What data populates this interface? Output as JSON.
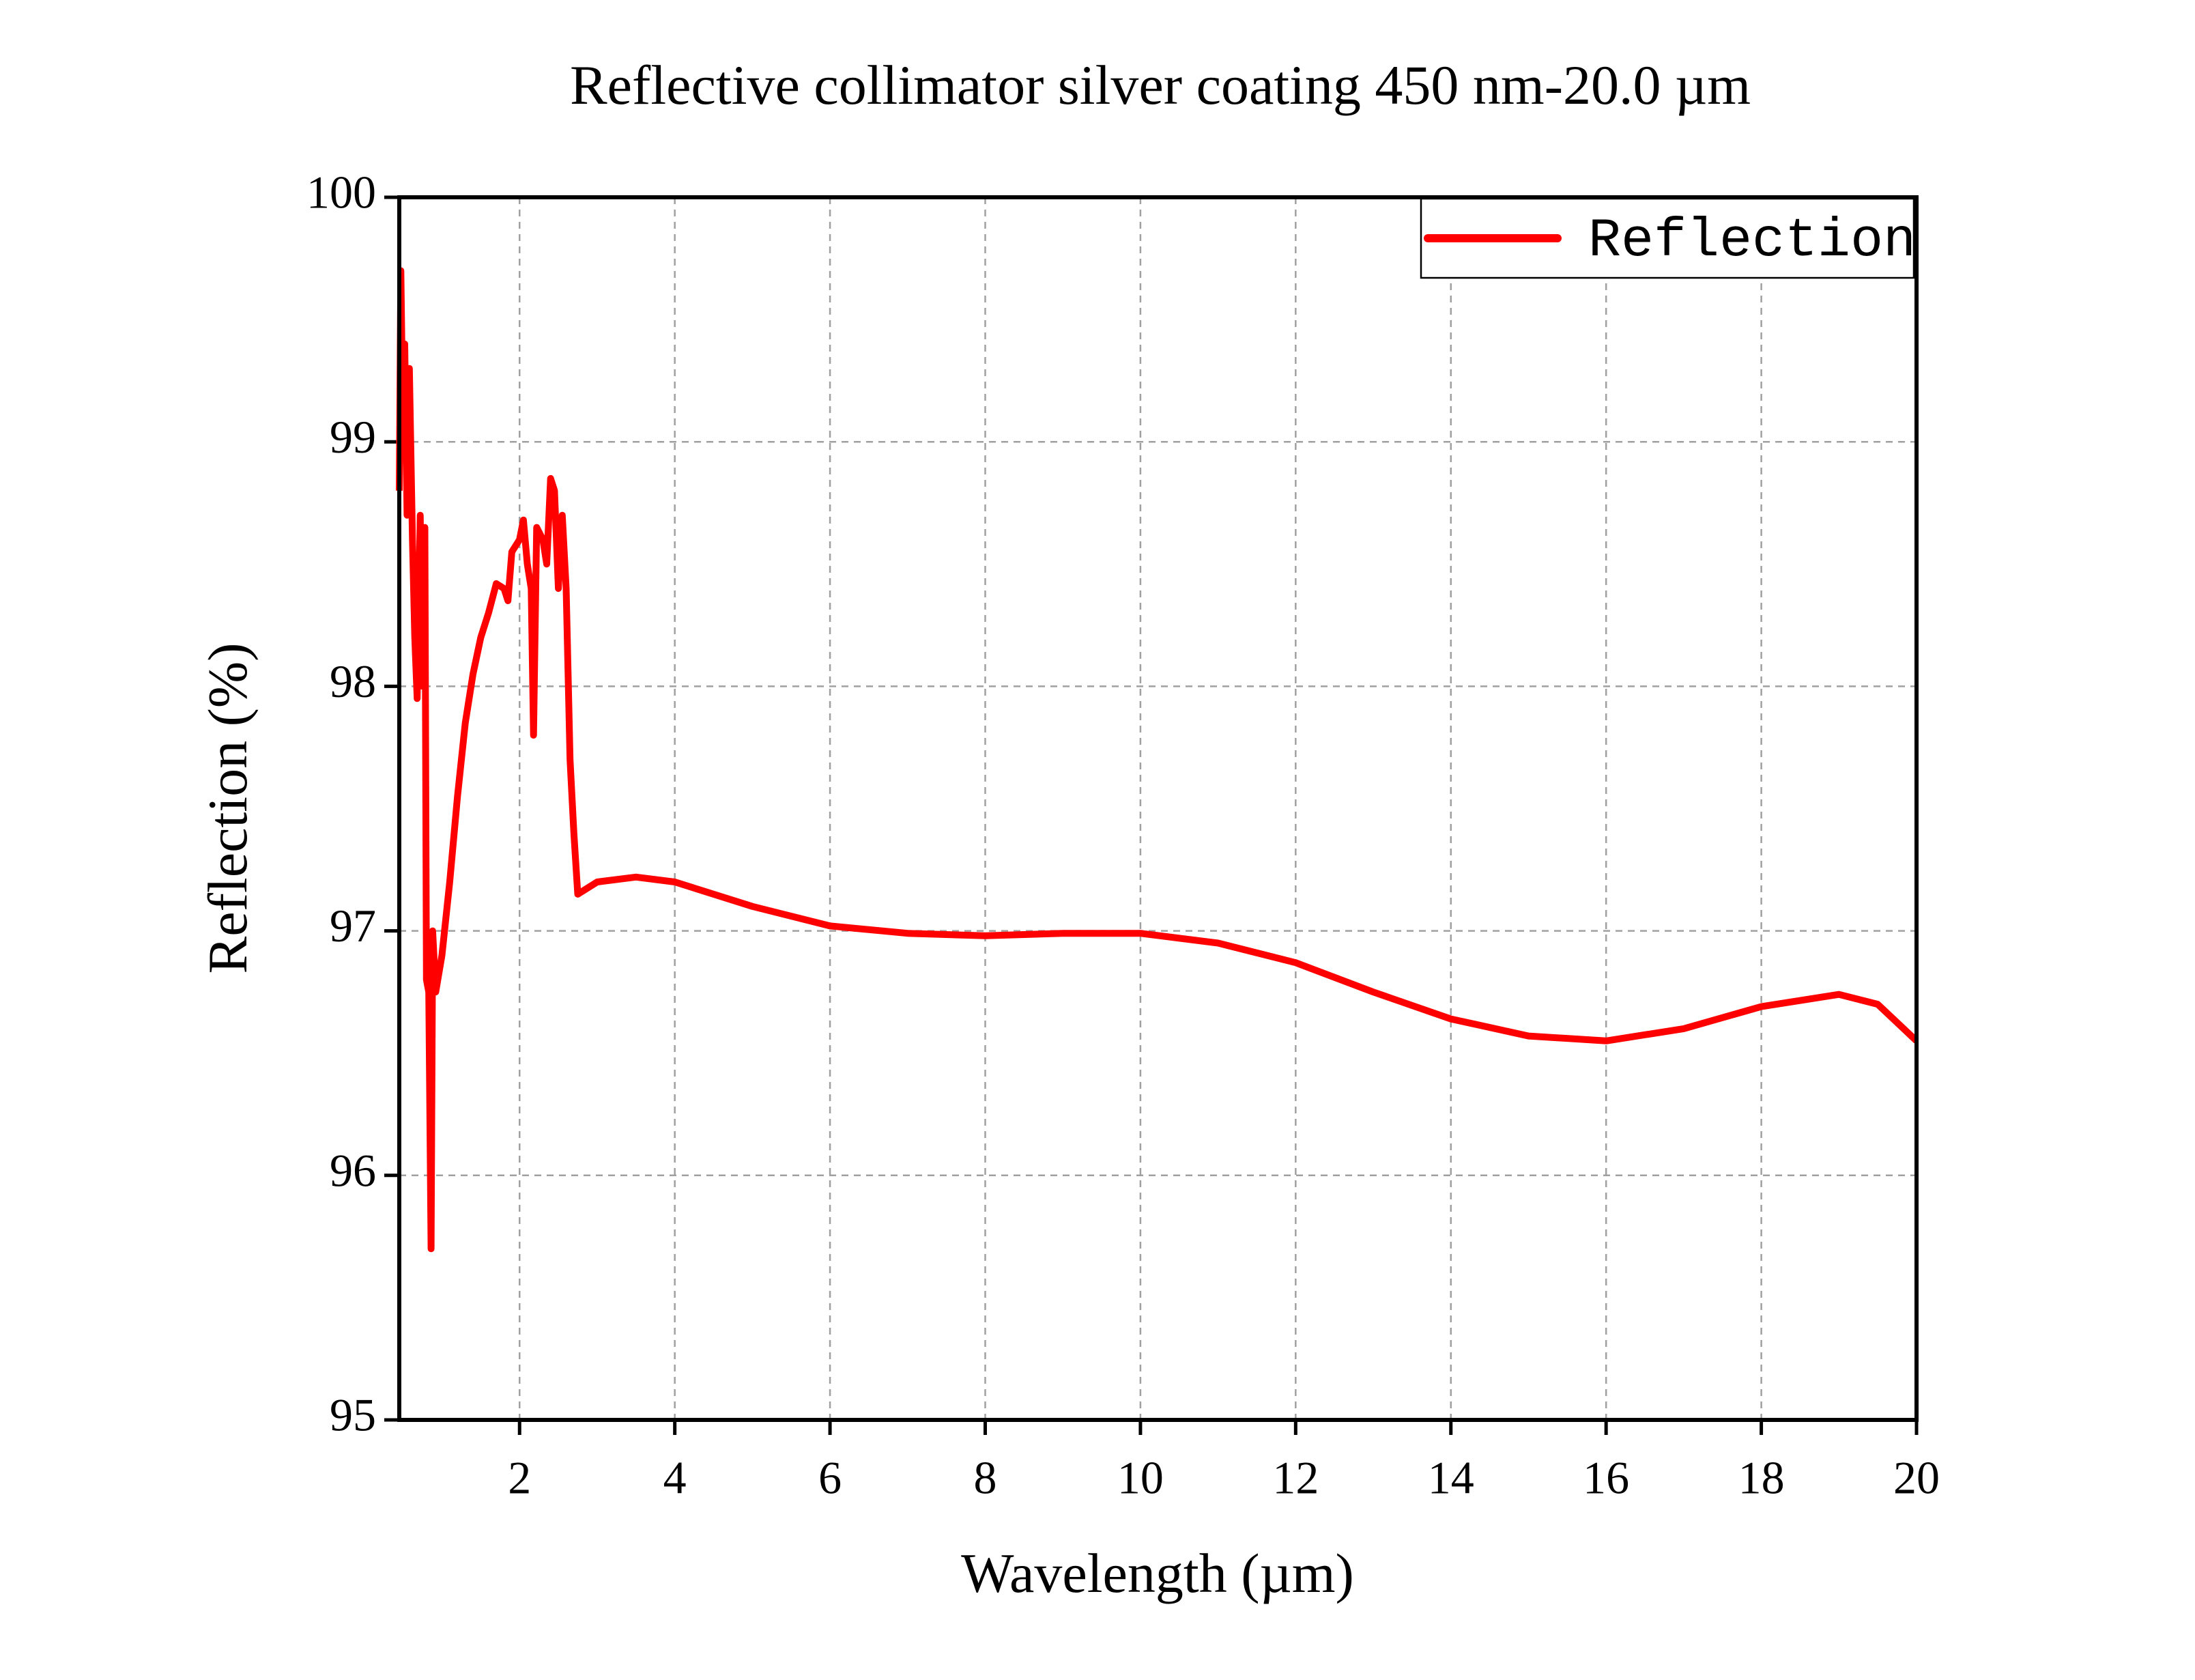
{
  "chart_data": {
    "type": "line",
    "title": "Reflective collimator silver coating 450 nm-20.0 µm",
    "x_label": "Wavelength (µm)",
    "y_label": "Reflection (%)",
    "x": [
      0.45,
      0.47,
      0.5,
      0.52,
      0.55,
      0.58,
      0.62,
      0.65,
      0.68,
      0.72,
      0.75,
      0.78,
      0.8,
      0.83,
      0.86,
      0.88,
      0.92,
      1.0,
      1.1,
      1.2,
      1.3,
      1.4,
      1.5,
      1.6,
      1.7,
      1.8,
      1.85,
      1.9,
      2.0,
      2.05,
      2.1,
      2.15,
      2.18,
      2.22,
      2.3,
      2.35,
      2.4,
      2.45,
      2.5,
      2.55,
      2.6,
      2.65,
      2.7,
      2.75,
      3.0,
      3.5,
      4.0,
      5.0,
      6.0,
      7.0,
      8.0,
      9.0,
      10.0,
      11.0,
      12.0,
      13.0,
      14.0,
      15.0,
      16.0,
      17.0,
      18.0,
      19.0,
      19.5,
      20.0
    ],
    "series": [
      {
        "name": "Reflection",
        "color": "#ff0000",
        "values": [
          98.8,
          99.7,
          99.0,
          99.4,
          98.7,
          99.3,
          98.6,
          98.2,
          97.95,
          98.7,
          98.0,
          98.65,
          96.8,
          96.75,
          95.7,
          97.0,
          96.75,
          96.9,
          97.2,
          97.55,
          97.85,
          98.05,
          98.2,
          98.3,
          98.42,
          98.4,
          98.35,
          98.55,
          98.6,
          98.68,
          98.5,
          98.4,
          97.8,
          98.65,
          98.6,
          98.5,
          98.85,
          98.8,
          98.4,
          98.7,
          98.4,
          97.7,
          97.4,
          97.15,
          97.2,
          97.22,
          97.2,
          97.1,
          97.02,
          96.99,
          96.98,
          96.99,
          96.99,
          96.95,
          96.87,
          96.75,
          96.64,
          96.57,
          96.55,
          96.6,
          96.69,
          96.74,
          96.7,
          96.55
        ]
      }
    ],
    "xlim": [
      0.45,
      20
    ],
    "ylim": [
      95,
      100
    ],
    "xticks": [
      2,
      4,
      6,
      8,
      10,
      12,
      14,
      16,
      18,
      20
    ],
    "yticks": [
      95,
      96,
      97,
      98,
      99,
      100
    ],
    "grid": true,
    "legend": "upper right"
  }
}
